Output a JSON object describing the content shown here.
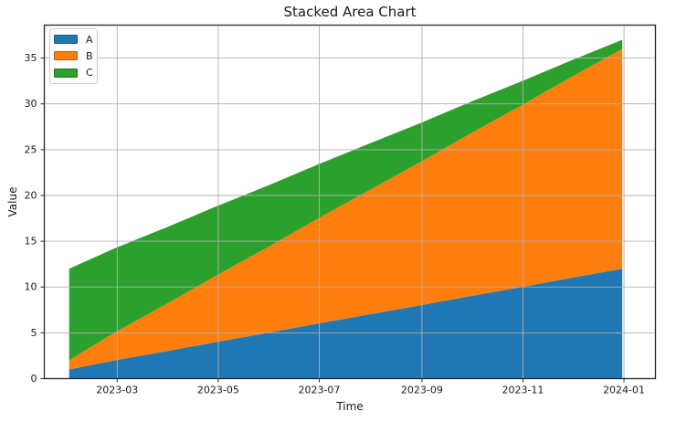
{
  "chart_data": {
    "type": "area",
    "stacked": true,
    "title": "Stacked Area Chart",
    "xlabel": "Time",
    "ylabel": "Value",
    "x": [
      "2023-01-31",
      "2023-02-28",
      "2023-03-31",
      "2023-04-30",
      "2023-05-31",
      "2023-06-30",
      "2023-07-31",
      "2023-08-31",
      "2023-09-30",
      "2023-10-31",
      "2023-11-30",
      "2023-12-31"
    ],
    "series": [
      {
        "name": "A",
        "color": "#1f77b4",
        "values": [
          1,
          2,
          3,
          4,
          5,
          6,
          7,
          8,
          9,
          10,
          11,
          12
        ]
      },
      {
        "name": "B",
        "color": "#ff7f0e",
        "values": [
          1,
          3.09,
          5.18,
          7.27,
          9.36,
          11.45,
          13.55,
          15.64,
          17.73,
          19.82,
          21.91,
          24
        ]
      },
      {
        "name": "C",
        "color": "#2ca02c",
        "values": [
          10,
          9.18,
          8.36,
          7.55,
          6.73,
          5.91,
          5.09,
          4.27,
          3.45,
          2.64,
          1.82,
          1
        ]
      }
    ],
    "stack_totals_first_point": 12,
    "stack_totals_last_point": 37,
    "ylim": [
      0,
      38.6
    ],
    "yticks": [
      0,
      5,
      10,
      15,
      20,
      25,
      30,
      35
    ],
    "xticks": [
      {
        "label": "2023-03",
        "date": "2023-03-01"
      },
      {
        "label": "2023-05",
        "date": "2023-05-01"
      },
      {
        "label": "2023-07",
        "date": "2023-07-01"
      },
      {
        "label": "2023-09",
        "date": "2023-09-01"
      },
      {
        "label": "2023-11",
        "date": "2023-11-01"
      },
      {
        "label": "2024-01",
        "date": "2024-01-01"
      }
    ],
    "xlim_days_from_first_point": [
      -15,
      354
    ],
    "grid": true,
    "grid_color": "#b0b0b0",
    "spine_color": "#262626",
    "text_color": "#1a1a1a",
    "legend_position": "upper left",
    "legend_labels": [
      "A",
      "B",
      "C"
    ]
  }
}
